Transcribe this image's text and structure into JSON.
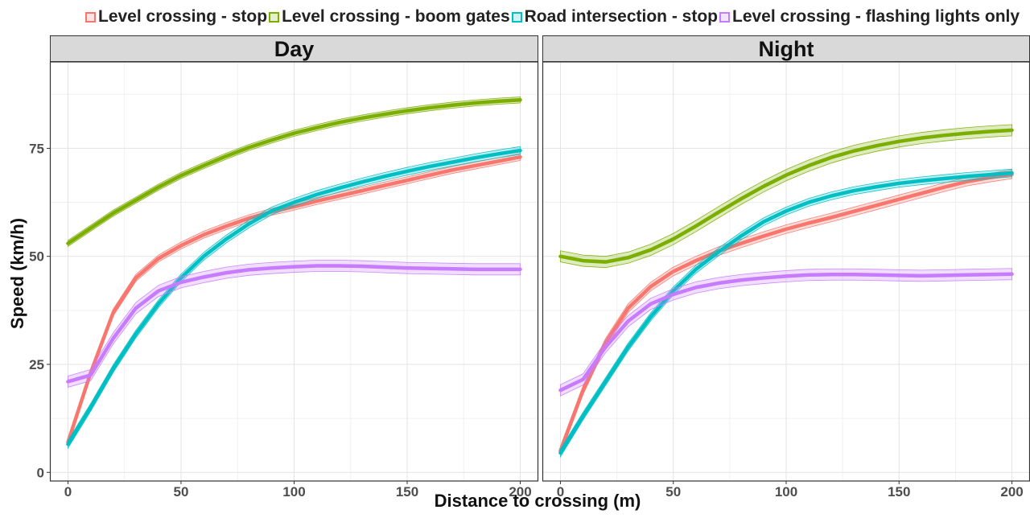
{
  "chart_data": {
    "type": "line",
    "xlabel": "Distance to crossing (m)",
    "ylabel": "Speed (km/h)",
    "xlim": [
      -8,
      208
    ],
    "ylim": [
      -2,
      95
    ],
    "xticks": [
      0,
      50,
      100,
      150,
      200
    ],
    "yticks": [
      0,
      25,
      50,
      75
    ],
    "grid": true,
    "legend_position": "top",
    "series_legend": [
      {
        "name": "Level crossing - stop",
        "color": "#f8766d"
      },
      {
        "name": "Level crossing - boom gates",
        "color": "#7cae00"
      },
      {
        "name": "Road intersection - stop",
        "color": "#00bfc4"
      },
      {
        "name": "Level crossing - flashing lights only",
        "color": "#c77cff"
      }
    ],
    "panels": [
      {
        "title": "Day",
        "series": [
          {
            "name": "Level crossing - stop",
            "x": [
              0,
              10,
              20,
              30,
              40,
              50,
              60,
              70,
              80,
              90,
              100,
              110,
              120,
              130,
              140,
              150,
              160,
              170,
              180,
              190,
              200
            ],
            "values": [
              7,
              23,
              37,
              45,
              49.5,
              52.5,
              55,
              57,
              58.8,
              60.3,
              61.5,
              62.8,
              64,
              65.2,
              66.4,
              67.6,
              68.8,
              70,
              71,
              72,
              73
            ],
            "band": 0.8
          },
          {
            "name": "Level crossing - boom gates",
            "x": [
              0,
              10,
              20,
              30,
              40,
              50,
              60,
              70,
              80,
              90,
              100,
              110,
              120,
              130,
              140,
              150,
              160,
              170,
              180,
              190,
              200
            ],
            "values": [
              53,
              56.5,
              60,
              63,
              66,
              68.7,
              71,
              73.2,
              75.2,
              76.9,
              78.5,
              79.8,
              81,
              82,
              82.9,
              83.7,
              84.4,
              85,
              85.5,
              85.9,
              86.2
            ],
            "band": 0.7
          },
          {
            "name": "Road intersection - stop",
            "x": [
              0,
              10,
              20,
              30,
              40,
              50,
              60,
              70,
              80,
              90,
              100,
              110,
              120,
              130,
              140,
              150,
              160,
              170,
              180,
              190,
              200
            ],
            "values": [
              6.5,
              15,
              24,
              32,
              39,
              45,
              50,
              54,
              57.5,
              60.5,
              62.5,
              64.3,
              65.8,
              67.2,
              68.5,
              69.7,
              70.8,
              71.8,
              72.8,
              73.7,
              74.5
            ],
            "band": 0.9
          },
          {
            "name": "Level crossing - flashing lights only",
            "x": [
              0,
              10,
              20,
              30,
              40,
              50,
              60,
              70,
              80,
              90,
              100,
              110,
              120,
              130,
              140,
              150,
              160,
              170,
              180,
              190,
              200
            ],
            "values": [
              21,
              22.5,
              31,
              38,
              42,
              44,
              45.2,
              46.2,
              46.9,
              47.3,
              47.6,
              47.8,
              47.8,
              47.7,
              47.5,
              47.3,
              47.2,
              47.1,
              47,
              47,
              47
            ],
            "band": 1.3
          }
        ]
      },
      {
        "title": "Night",
        "series": [
          {
            "name": "Level crossing - stop",
            "x": [
              0,
              10,
              20,
              30,
              40,
              50,
              60,
              70,
              80,
              90,
              100,
              110,
              120,
              130,
              140,
              150,
              160,
              170,
              180,
              190,
              200
            ],
            "values": [
              5,
              19,
              30,
              38,
              43,
              46.5,
              49,
              51.2,
              53,
              54.7,
              56.3,
              57.7,
              59,
              60.4,
              61.8,
              63.2,
              64.6,
              66,
              67.3,
              68.2,
              69
            ],
            "band": 1.0
          },
          {
            "name": "Level crossing - boom gates",
            "x": [
              0,
              10,
              20,
              30,
              40,
              50,
              60,
              70,
              80,
              90,
              100,
              110,
              120,
              130,
              140,
              150,
              160,
              170,
              180,
              190,
              200
            ],
            "values": [
              50,
              49,
              48.7,
              49.7,
              51.5,
              54,
              57,
              60.2,
              63.3,
              66.2,
              68.8,
              71,
              72.9,
              74.4,
              75.6,
              76.6,
              77.4,
              78,
              78.5,
              78.9,
              79.2
            ],
            "band": 1.3
          },
          {
            "name": "Road intersection - stop",
            "x": [
              0,
              10,
              20,
              30,
              40,
              50,
              60,
              70,
              80,
              90,
              100,
              110,
              120,
              130,
              140,
              150,
              160,
              170,
              180,
              190,
              200
            ],
            "values": [
              4.5,
              13,
              21,
              29,
              36,
              42,
              47,
              51,
              54.7,
              58,
              60.5,
              62.5,
              64,
              65.2,
              66.1,
              66.9,
              67.5,
              68,
              68.5,
              68.9,
              69.3
            ],
            "band": 0.9
          },
          {
            "name": "Level crossing - flashing lights only",
            "x": [
              0,
              10,
              20,
              30,
              40,
              50,
              60,
              70,
              80,
              90,
              100,
              110,
              120,
              130,
              140,
              150,
              160,
              170,
              180,
              190,
              200
            ],
            "values": [
              19,
              21.5,
              29,
              35,
              39,
              41.2,
              42.8,
              43.8,
              44.5,
              45,
              45.4,
              45.7,
              45.8,
              45.8,
              45.7,
              45.6,
              45.5,
              45.6,
              45.7,
              45.8,
              45.9
            ],
            "band": 1.3
          }
        ]
      }
    ]
  }
}
